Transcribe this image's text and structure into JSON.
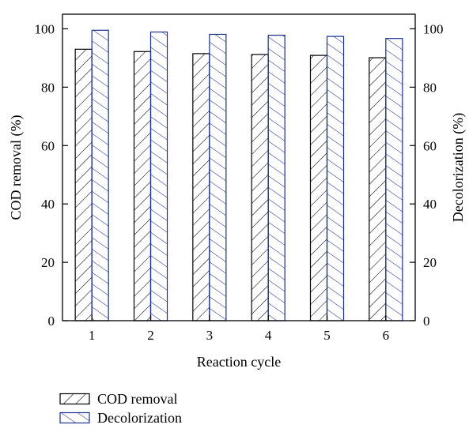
{
  "chart_data": {
    "type": "bar",
    "categories": [
      "1",
      "2",
      "3",
      "4",
      "5",
      "6"
    ],
    "series": [
      {
        "name": "COD removal",
        "values": [
          93,
          92.2,
          91.5,
          91.2,
          90.9,
          90.1
        ],
        "axis": "left",
        "hatch": "forward-diagonal",
        "stroke": "#000000"
      },
      {
        "name": "Decolorization",
        "values": [
          99.5,
          98.9,
          98.1,
          97.8,
          97.4,
          96.7
        ],
        "axis": "right",
        "hatch": "back-diagonal",
        "stroke": "#1a2f8c"
      }
    ],
    "xlabel": "Reaction cycle",
    "ylabel_left": "COD removal (%)",
    "ylabel_right": "Decolorization (%)",
    "ylim": [
      0,
      105
    ],
    "yticks": [
      0,
      20,
      40,
      60,
      80,
      100
    ],
    "grid": false,
    "legend_position": "bottom-left"
  }
}
